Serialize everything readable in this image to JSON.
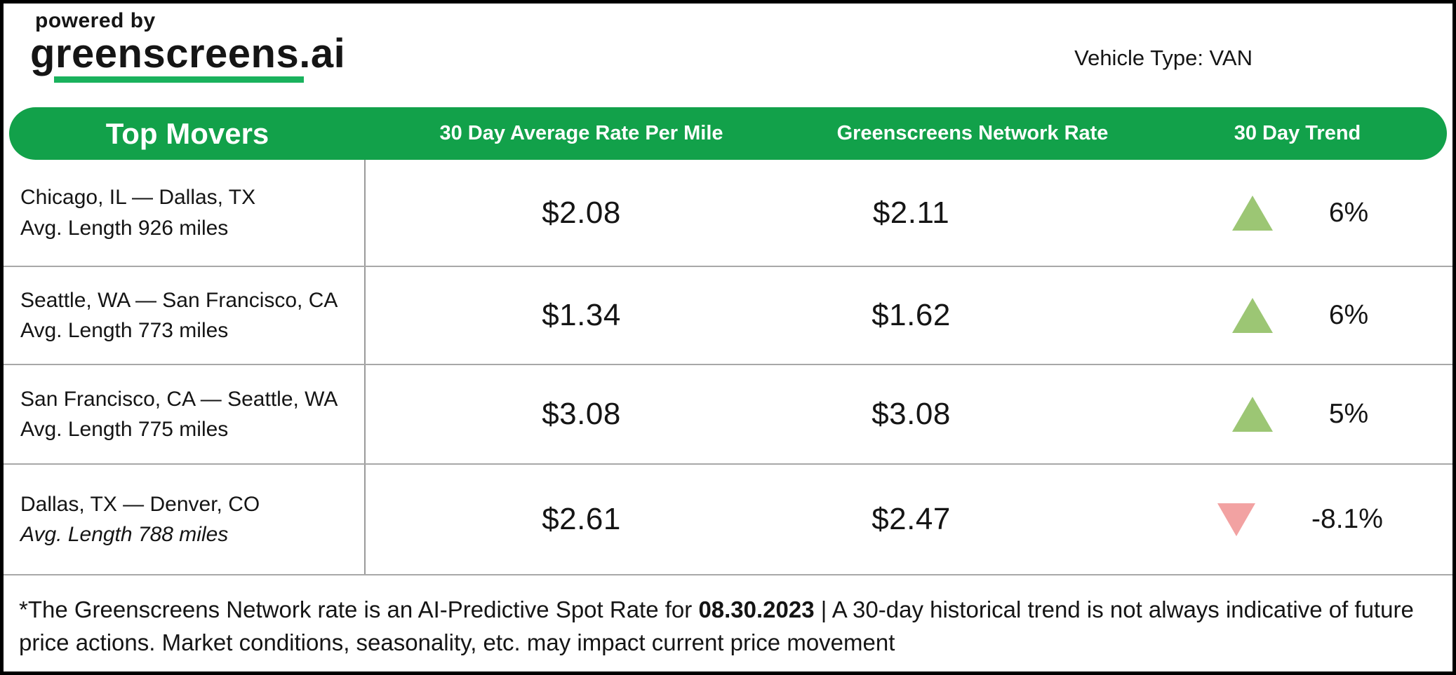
{
  "header": {
    "powered_by": "powered by",
    "brand": "greenscreens.ai",
    "vehicle_type": "Vehicle Type: VAN"
  },
  "table_header": {
    "title": "Top Movers",
    "col_avg_rate": "30 Day Average Rate Per Mile",
    "col_network_rate": "Greenscreens Network Rate",
    "col_trend": "30 Day Trend"
  },
  "rows": [
    {
      "lane": "Chicago, IL — Dallas, TX",
      "avg_length": "Avg. Length 926 miles",
      "avg_rate": "$2.08",
      "network_rate": "$2.11",
      "trend_value": "6%",
      "trend_direction": "up"
    },
    {
      "lane": "Seattle, WA — San Francisco, CA",
      "avg_length": "Avg. Length 773 miles",
      "avg_rate": "$1.34",
      "network_rate": "$1.62",
      "trend_value": "6%",
      "trend_direction": "up"
    },
    {
      "lane": "San Francisco, CA — Seattle, WA",
      "avg_length": "Avg. Length 775 miles",
      "avg_rate": "$3.08",
      "network_rate": "$3.08",
      "trend_value": "5%",
      "trend_direction": "up"
    },
    {
      "lane": "Dallas, TX — Denver, CO",
      "avg_length": "Avg. Length 788 miles",
      "avg_rate": "$2.61",
      "network_rate": "$2.47",
      "trend_value": "-8.1%",
      "trend_direction": "down"
    }
  ],
  "footer": {
    "prefix": "*The Greenscreens Network rate is an AI-Predictive Spot Rate for ",
    "date": "08.30.2023",
    "suffix": " | A 30-day historical trend is not always indicative of future price actions. Market conditions, seasonality, etc. may impact current price movement"
  },
  "colors": {
    "header_bar": "#12A14A",
    "brand_underline": "#1AB25D",
    "trend_up": "#9CC674",
    "trend_down": "#F2A2A2"
  },
  "chart_data": {
    "type": "table",
    "title": "Top Movers",
    "columns": [
      "Top Movers",
      "30 Day Average Rate Per Mile",
      "Greenscreens Network Rate",
      "30 Day Trend"
    ],
    "rows": [
      {
        "lane": "Chicago, IL — Dallas, TX",
        "avg_length_miles": 926,
        "avg_rate_per_mile": 2.08,
        "network_rate": 2.11,
        "trend_pct": 6,
        "trend_direction": "up"
      },
      {
        "lane": "Seattle, WA — San Francisco, CA",
        "avg_length_miles": 773,
        "avg_rate_per_mile": 1.34,
        "network_rate": 1.62,
        "trend_pct": 6,
        "trend_direction": "up"
      },
      {
        "lane": "San Francisco, CA — Seattle, WA",
        "avg_length_miles": 775,
        "avg_rate_per_mile": 3.08,
        "network_rate": 3.08,
        "trend_pct": 5,
        "trend_direction": "up"
      },
      {
        "lane": "Dallas, TX — Denver, CO",
        "avg_length_miles": 788,
        "avg_rate_per_mile": 2.61,
        "network_rate": 2.47,
        "trend_pct": -8.1,
        "trend_direction": "down"
      }
    ],
    "footnote_date": "08.30.2023",
    "vehicle_type": "VAN"
  }
}
